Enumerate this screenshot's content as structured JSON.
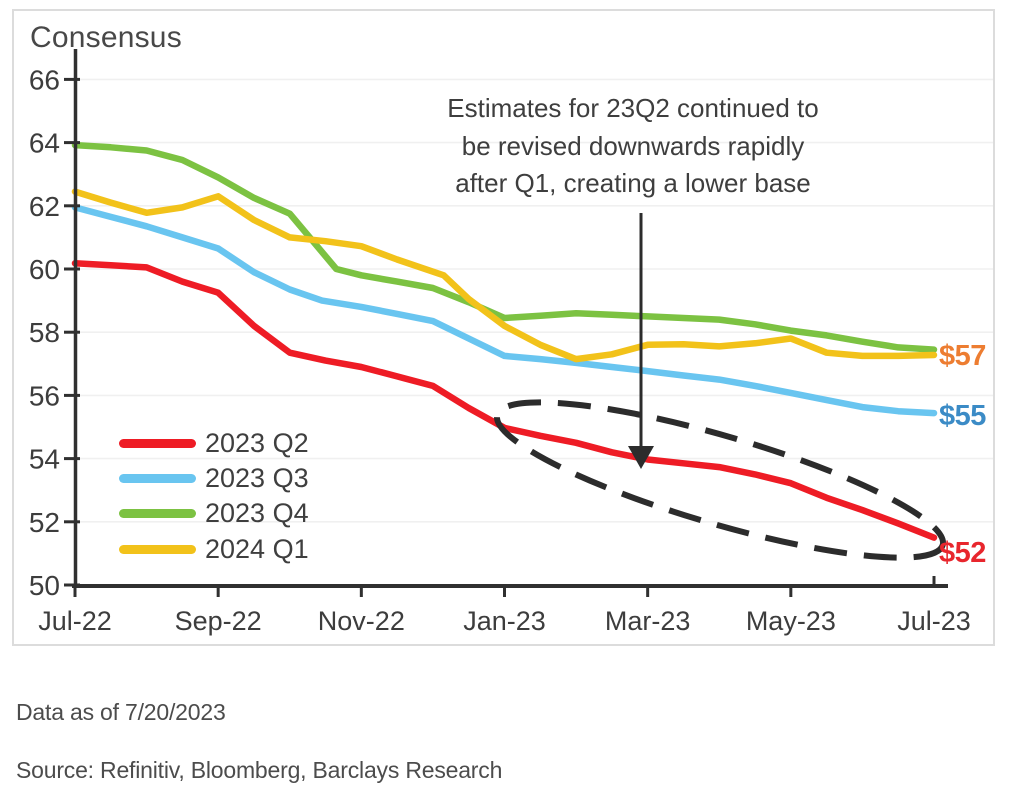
{
  "chart_data": {
    "type": "line",
    "title": "Consensus",
    "xlabel": "",
    "ylabel": "",
    "x_unit": "months since Jul-22",
    "x_tick_labels": [
      "Jul-22",
      "Sep-22",
      "Nov-22",
      "Jan-23",
      "Mar-23",
      "May-23",
      "Jul-23"
    ],
    "x_tick_months": [
      0,
      2,
      4,
      6,
      8,
      10,
      12
    ],
    "ylim": [
      50,
      66
    ],
    "y_ticks": [
      50,
      52,
      54,
      56,
      58,
      60,
      62,
      64,
      66
    ],
    "grid": "faint horizontal at even values",
    "legend_position": "inside lower-left",
    "series": [
      {
        "name": "2023 Q2",
        "color": "#ee1c25",
        "end_label": {
          "text": "$52",
          "color": "#e8262d",
          "at_value": 51.0
        },
        "points": [
          [
            0,
            60.18
          ],
          [
            0.5,
            60.12
          ],
          [
            1,
            60.05
          ],
          [
            1.5,
            59.6
          ],
          [
            2,
            59.25
          ],
          [
            2.5,
            58.2
          ],
          [
            3,
            57.35
          ],
          [
            3.5,
            57.1
          ],
          [
            4,
            56.9
          ],
          [
            4.5,
            56.6
          ],
          [
            5,
            56.3
          ],
          [
            5.5,
            55.6
          ],
          [
            6,
            54.97
          ],
          [
            6.5,
            54.72
          ],
          [
            7,
            54.5
          ],
          [
            7.5,
            54.2
          ],
          [
            8,
            53.97
          ],
          [
            8.5,
            53.85
          ],
          [
            9,
            53.73
          ],
          [
            9.5,
            53.5
          ],
          [
            10,
            53.22
          ],
          [
            10.5,
            52.76
          ],
          [
            11,
            52.37
          ],
          [
            11.5,
            51.95
          ],
          [
            12,
            51.5
          ]
        ]
      },
      {
        "name": "2023 Q3",
        "color": "#69c5f0",
        "end_label": {
          "text": "$55",
          "color": "#3b8bc6",
          "at_value": 55.35
        },
        "points": [
          [
            0,
            61.95
          ],
          [
            0.5,
            61.65
          ],
          [
            1,
            61.35
          ],
          [
            1.5,
            61.0
          ],
          [
            2,
            60.65
          ],
          [
            2.5,
            59.9
          ],
          [
            3,
            59.35
          ],
          [
            3.45,
            59.0
          ],
          [
            4,
            58.8
          ],
          [
            4.5,
            58.58
          ],
          [
            5,
            58.35
          ],
          [
            5.5,
            57.8
          ],
          [
            6,
            57.25
          ],
          [
            6.5,
            57.15
          ],
          [
            7,
            57.03
          ],
          [
            7.5,
            56.9
          ],
          [
            8,
            56.77
          ],
          [
            8.5,
            56.63
          ],
          [
            9,
            56.5
          ],
          [
            9.5,
            56.3
          ],
          [
            10,
            56.08
          ],
          [
            10.5,
            55.85
          ],
          [
            11,
            55.63
          ],
          [
            11.5,
            55.5
          ],
          [
            12,
            55.44
          ]
        ]
      },
      {
        "name": "2023 Q4",
        "color": "#7cc242",
        "end_label": null,
        "points": [
          [
            0,
            63.92
          ],
          [
            0.5,
            63.85
          ],
          [
            1,
            63.75
          ],
          [
            1.5,
            63.45
          ],
          [
            2,
            62.9
          ],
          [
            2.5,
            62.25
          ],
          [
            3,
            61.75
          ],
          [
            3.65,
            60.0
          ],
          [
            4,
            59.8
          ],
          [
            4.5,
            59.6
          ],
          [
            5,
            59.4
          ],
          [
            5.5,
            58.95
          ],
          [
            6,
            58.45
          ],
          [
            6.5,
            58.52
          ],
          [
            7,
            58.6
          ],
          [
            7.5,
            58.55
          ],
          [
            8,
            58.5
          ],
          [
            8.5,
            58.45
          ],
          [
            9,
            58.4
          ],
          [
            9.5,
            58.25
          ],
          [
            10,
            58.05
          ],
          [
            10.5,
            57.9
          ],
          [
            11,
            57.7
          ],
          [
            11.5,
            57.52
          ],
          [
            12,
            57.45
          ]
        ]
      },
      {
        "name": "2024 Q1",
        "color": "#f2c21a",
        "end_label": {
          "text": "$57",
          "color": "#ed7d31",
          "at_value": 57.25
        },
        "points": [
          [
            0,
            62.45
          ],
          [
            0.5,
            62.1
          ],
          [
            1,
            61.78
          ],
          [
            1.5,
            61.95
          ],
          [
            2,
            62.3
          ],
          [
            2.5,
            61.55
          ],
          [
            3,
            61.0
          ],
          [
            3.5,
            60.88
          ],
          [
            4,
            60.72
          ],
          [
            4.5,
            60.3
          ],
          [
            5.15,
            59.8
          ],
          [
            5.5,
            59.05
          ],
          [
            6,
            58.2
          ],
          [
            6.5,
            57.6
          ],
          [
            7,
            57.15
          ],
          [
            7.5,
            57.3
          ],
          [
            8,
            57.6
          ],
          [
            8.5,
            57.62
          ],
          [
            9,
            57.55
          ],
          [
            9.5,
            57.65
          ],
          [
            10,
            57.8
          ],
          [
            10.5,
            57.35
          ],
          [
            11,
            57.25
          ],
          [
            11.5,
            57.25
          ],
          [
            12,
            57.28
          ]
        ]
      }
    ],
    "annotation": {
      "lines": [
        "Estimates for 23Q2 continued to",
        "be revised downwards rapidly",
        "after Q1, creating a lower base"
      ],
      "arrow_points_to": "2023 Q2 line near Mar-23",
      "highlight": "dashed ellipse around 2023 Q2 decline from Jan-23 to Jul-23"
    }
  },
  "footer": {
    "data_as_of": "Data as of 7/20/2023",
    "source": "Source: Refinitiv, Bloomberg, Barclays Research"
  },
  "colors": {
    "axis": "#303030",
    "tick_label": "#3d3d3d",
    "gridline": "#f0f0f0",
    "annotation_ink": "#2c2c2c",
    "panel_border": "#dcdcdc"
  }
}
